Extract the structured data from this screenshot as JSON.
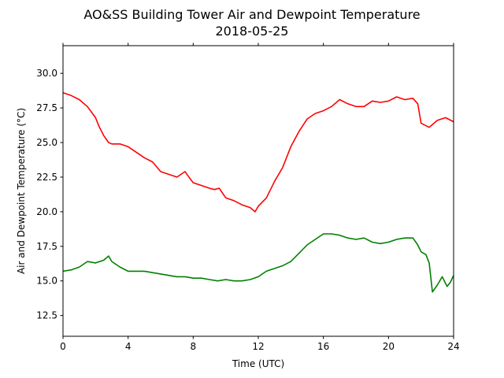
{
  "chart_data": {
    "type": "line",
    "title": "AO&SS Building Tower Air and Dewpoint Temperature",
    "subtitle": "2018-05-25",
    "xlabel": "Time (UTC)",
    "ylabel": "Air and Dewpoint Temperature (°C)",
    "xlim": [
      0,
      24
    ],
    "ylim": [
      11.0,
      32.0
    ],
    "xticks": [
      0,
      4,
      8,
      12,
      16,
      20,
      24
    ],
    "yticks": [
      12.5,
      15.0,
      17.5,
      20.0,
      22.5,
      25.0,
      27.5,
      30.0
    ],
    "grid": false,
    "series": [
      {
        "color": "#ff0000",
        "x": [
          0,
          0.5,
          1,
          1.5,
          2,
          2.2,
          2.5,
          2.8,
          3,
          3.5,
          4,
          4.5,
          5,
          5.5,
          6,
          6.5,
          7,
          7.5,
          7.8,
          8,
          8.5,
          9,
          9.3,
          9.6,
          10,
          10.5,
          11,
          11.5,
          11.8,
          12,
          12.5,
          13,
          13.5,
          14,
          14.5,
          15,
          15.5,
          16,
          16.5,
          17,
          17.5,
          18,
          18.5,
          19,
          19.5,
          20,
          20.5,
          21,
          21.5,
          21.8,
          22,
          22.5,
          23,
          23.5,
          24
        ],
        "values": [
          28.6,
          28.4,
          28.1,
          27.6,
          26.8,
          26.2,
          25.5,
          25.0,
          24.9,
          24.9,
          24.7,
          24.3,
          23.9,
          23.6,
          22.9,
          22.7,
          22.5,
          22.9,
          22.4,
          22.1,
          21.9,
          21.7,
          21.6,
          21.7,
          21.0,
          20.8,
          20.5,
          20.3,
          20.0,
          20.4,
          21.0,
          22.2,
          23.2,
          24.7,
          25.8,
          26.7,
          27.1,
          27.3,
          27.6,
          28.1,
          27.8,
          27.6,
          27.6,
          28.0,
          27.9,
          28.0,
          28.3,
          28.1,
          28.2,
          27.8,
          26.4,
          26.1,
          26.6,
          26.8,
          26.5
        ]
      },
      {
        "color": "#008000",
        "x": [
          0,
          0.5,
          1,
          1.5,
          2,
          2.5,
          2.8,
          3,
          3.5,
          4,
          4.5,
          5,
          5.5,
          6,
          6.5,
          7,
          7.5,
          8,
          8.5,
          9,
          9.5,
          10,
          10.5,
          11,
          11.5,
          12,
          12.5,
          13,
          13.5,
          14,
          14.5,
          15,
          15.5,
          16,
          16.5,
          17,
          17.5,
          18,
          18.5,
          19,
          19.5,
          20,
          20.5,
          21,
          21.5,
          21.8,
          22,
          22.3,
          22.5,
          22.7,
          23,
          23.3,
          23.6,
          23.8,
          24
        ],
        "values": [
          15.7,
          15.8,
          16.0,
          16.4,
          16.3,
          16.5,
          16.8,
          16.4,
          16.0,
          15.7,
          15.7,
          15.7,
          15.6,
          15.5,
          15.4,
          15.3,
          15.3,
          15.2,
          15.2,
          15.1,
          15.0,
          15.1,
          15.0,
          15.0,
          15.1,
          15.3,
          15.7,
          15.9,
          16.1,
          16.4,
          17.0,
          17.6,
          18.0,
          18.4,
          18.4,
          18.3,
          18.1,
          18.0,
          18.1,
          17.8,
          17.7,
          17.8,
          18.0,
          18.1,
          18.1,
          17.6,
          17.1,
          16.9,
          16.3,
          14.2,
          14.7,
          15.3,
          14.6,
          14.9,
          15.4
        ]
      }
    ]
  }
}
